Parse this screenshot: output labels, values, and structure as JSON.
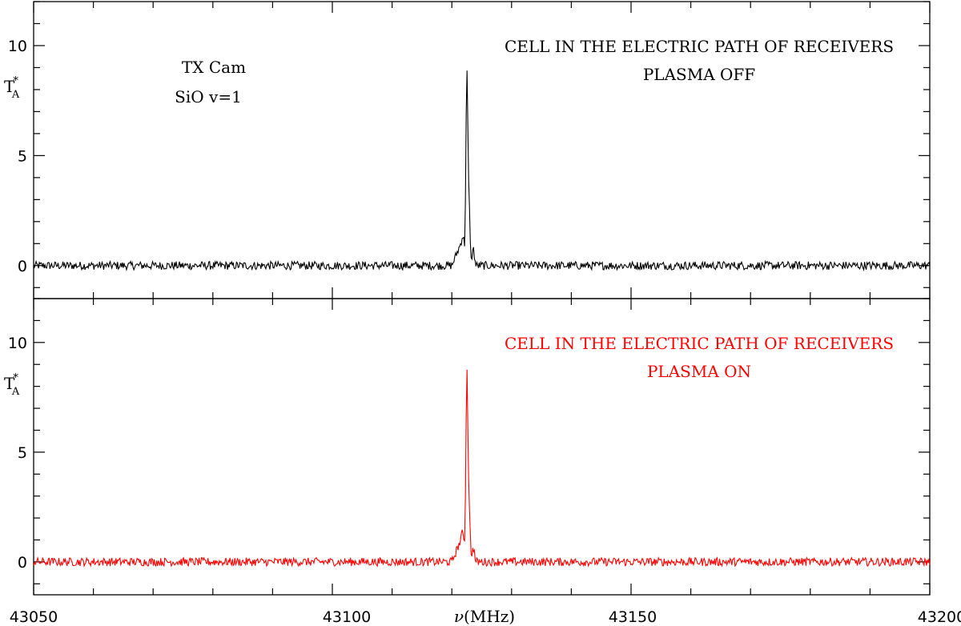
{
  "chart_data": [
    {
      "type": "line",
      "xlim": [
        43050,
        43200
      ],
      "ylim": [
        -1.5,
        12
      ],
      "y_ticks": [
        0,
        5,
        10
      ],
      "y_tick_labels": [
        "0",
        "5",
        "10"
      ],
      "ylabel": "T",
      "ylabel_sup": "*",
      "ylabel_sub": "A",
      "line_color": "#000000",
      "annotations_left": [
        "TX Cam",
        "SiO v=1"
      ],
      "annotations_right": [
        "CELL IN THE ELECTRIC PATH OF RECEIVERS",
        "PLASMA OFF"
      ],
      "annotation_color": "#000000",
      "series": [
        {
          "x": [
            43050,
            43110,
            43120,
            43121.5,
            43121.8,
            43122.2,
            43122.5,
            43122.8,
            43123.2,
            43123.6,
            43124,
            43130,
            43200
          ],
          "values": [
            0,
            0,
            0,
            1.0,
            1.4,
            0.9,
            9.6,
            4.0,
            0.2,
            0.8,
            0,
            0,
            0
          ]
        }
      ]
    },
    {
      "type": "line",
      "xlim": [
        43050,
        43200
      ],
      "ylim": [
        -1.5,
        12
      ],
      "y_ticks": [
        0,
        5,
        10
      ],
      "y_tick_labels": [
        "0",
        "5",
        "10"
      ],
      "ylabel": "T",
      "ylabel_sup": "*",
      "ylabel_sub": "A",
      "line_color": "#ff0000",
      "annotations_right": [
        "CELL IN THE ELECTRIC PATH OF RECEIVERS",
        "PLASMA ON"
      ],
      "annotation_color": "#ff0000",
      "series": [
        {
          "x": [
            43050,
            43110,
            43120,
            43121.5,
            43121.8,
            43122.2,
            43122.5,
            43122.8,
            43123.2,
            43123.6,
            43124,
            43130,
            43200
          ],
          "values": [
            0,
            0,
            0,
            1.0,
            1.4,
            0.9,
            9.5,
            4.0,
            0.2,
            0.7,
            0,
            0,
            0
          ]
        }
      ]
    }
  ],
  "x_axis": {
    "ticks": [
      43050,
      43100,
      43150,
      43200
    ],
    "tick_labels": [
      "43050",
      "43100",
      "43150",
      "43200"
    ],
    "minor_step": 10,
    "label_greek": "ν",
    "label_rest": "(MHz)"
  }
}
